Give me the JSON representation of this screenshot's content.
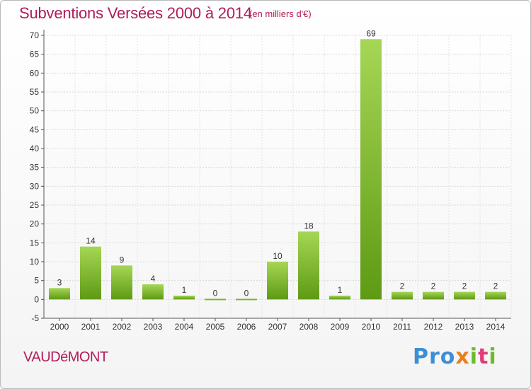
{
  "header": {
    "title": "Subventions Versées 2000 à 2014",
    "unit_note": "(en milliers d'€)"
  },
  "footer": {
    "commune": "VAUDéMONT",
    "logo_text": "Proxiti"
  },
  "colors": {
    "title": "#b01c5a",
    "bar_light": "#a6d655",
    "bar_dark": "#5e9a14"
  },
  "chart_data": {
    "type": "bar",
    "categories": [
      "2000",
      "2001",
      "2002",
      "2003",
      "2004",
      "2005",
      "2006",
      "2007",
      "2008",
      "2009",
      "2010",
      "2011",
      "2012",
      "2013",
      "2014"
    ],
    "values": [
      3,
      14,
      9,
      4,
      1,
      0,
      0,
      10,
      18,
      1,
      69,
      2,
      2,
      2,
      2
    ],
    "title": "Subventions Versées 2000 à 2014",
    "ylim": [
      -5,
      70
    ],
    "yticks": [
      -5,
      0,
      5,
      10,
      15,
      20,
      25,
      30,
      35,
      40,
      45,
      50,
      55,
      60,
      65,
      70
    ],
    "grid": true,
    "legend": "none"
  }
}
